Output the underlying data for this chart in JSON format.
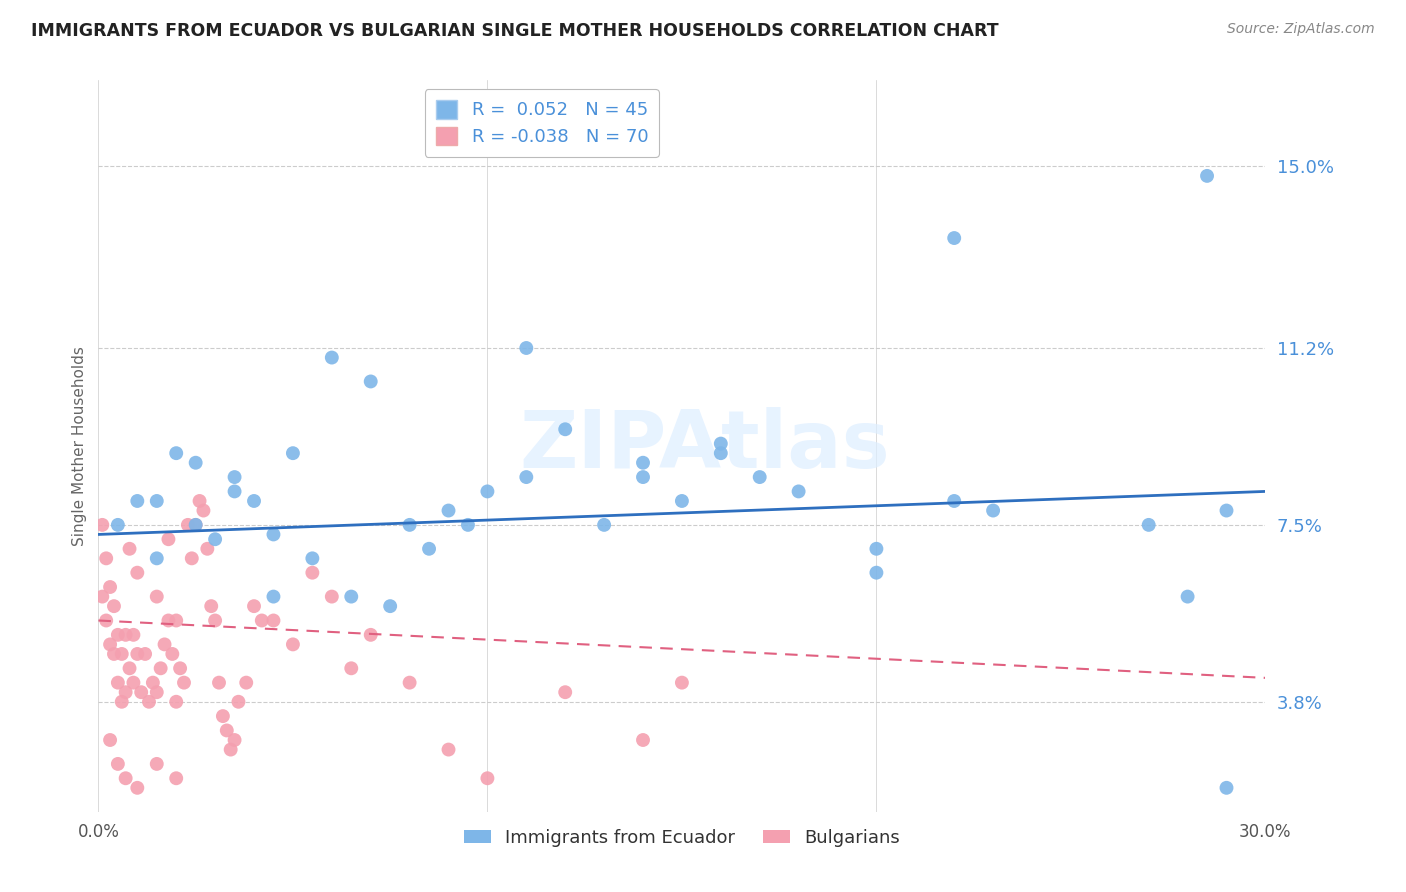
{
  "title": "IMMIGRANTS FROM ECUADOR VS BULGARIAN SINGLE MOTHER HOUSEHOLDS CORRELATION CHART",
  "source": "Source: ZipAtlas.com",
  "ylabel": "Single Mother Households",
  "legend_label1": "Immigrants from Ecuador",
  "legend_label2": "Bulgarians",
  "r1": 0.052,
  "n1": 45,
  "r2": -0.038,
  "n2": 70,
  "xlim": [
    0.0,
    0.3
  ],
  "ylim": [
    0.015,
    0.168
  ],
  "yticks": [
    0.038,
    0.075,
    0.112,
    0.15
  ],
  "ytick_labels": [
    "3.8%",
    "7.5%",
    "11.2%",
    "15.0%"
  ],
  "xticks": [
    0.0,
    0.05,
    0.1,
    0.15,
    0.2,
    0.25,
    0.3
  ],
  "xtick_labels": [
    "0.0%",
    "",
    "",
    "",
    "",
    "",
    "30.0%"
  ],
  "color1": "#7EB6E8",
  "color2": "#F4A0B0",
  "line_color1": "#2E6FBF",
  "line_color2": "#E06080",
  "background_color": "#FFFFFF",
  "blue_scatter_x": [
    0.005,
    0.01,
    0.015,
    0.02,
    0.025,
    0.03,
    0.035,
    0.04,
    0.045,
    0.05,
    0.06,
    0.07,
    0.08,
    0.09,
    0.1,
    0.11,
    0.12,
    0.13,
    0.14,
    0.15,
    0.16,
    0.17,
    0.18,
    0.2,
    0.22,
    0.23,
    0.27,
    0.285,
    0.29,
    0.015,
    0.025,
    0.035,
    0.045,
    0.055,
    0.065,
    0.075,
    0.085,
    0.095,
    0.11,
    0.14,
    0.16,
    0.2,
    0.22,
    0.28,
    0.29
  ],
  "blue_scatter_y": [
    0.075,
    0.08,
    0.068,
    0.09,
    0.075,
    0.072,
    0.085,
    0.08,
    0.073,
    0.09,
    0.11,
    0.105,
    0.075,
    0.078,
    0.082,
    0.112,
    0.095,
    0.075,
    0.085,
    0.08,
    0.09,
    0.085,
    0.082,
    0.07,
    0.135,
    0.078,
    0.075,
    0.148,
    0.02,
    0.08,
    0.088,
    0.082,
    0.06,
    0.068,
    0.06,
    0.058,
    0.07,
    0.075,
    0.085,
    0.088,
    0.092,
    0.065,
    0.08,
    0.06,
    0.078
  ],
  "pink_scatter_x": [
    0.001,
    0.001,
    0.002,
    0.002,
    0.003,
    0.003,
    0.004,
    0.004,
    0.005,
    0.005,
    0.006,
    0.006,
    0.007,
    0.007,
    0.008,
    0.008,
    0.009,
    0.009,
    0.01,
    0.01,
    0.011,
    0.012,
    0.013,
    0.014,
    0.015,
    0.015,
    0.016,
    0.017,
    0.018,
    0.018,
    0.019,
    0.02,
    0.02,
    0.021,
    0.022,
    0.023,
    0.024,
    0.025,
    0.026,
    0.027,
    0.028,
    0.029,
    0.03,
    0.031,
    0.032,
    0.033,
    0.034,
    0.035,
    0.036,
    0.038,
    0.04,
    0.042,
    0.045,
    0.05,
    0.055,
    0.06,
    0.065,
    0.07,
    0.08,
    0.09,
    0.1,
    0.12,
    0.14,
    0.15,
    0.003,
    0.005,
    0.007,
    0.01,
    0.015,
    0.02
  ],
  "pink_scatter_y": [
    0.06,
    0.075,
    0.055,
    0.068,
    0.05,
    0.062,
    0.048,
    0.058,
    0.042,
    0.052,
    0.038,
    0.048,
    0.04,
    0.052,
    0.045,
    0.07,
    0.042,
    0.052,
    0.048,
    0.065,
    0.04,
    0.048,
    0.038,
    0.042,
    0.04,
    0.06,
    0.045,
    0.05,
    0.055,
    0.072,
    0.048,
    0.038,
    0.055,
    0.045,
    0.042,
    0.075,
    0.068,
    0.075,
    0.08,
    0.078,
    0.07,
    0.058,
    0.055,
    0.042,
    0.035,
    0.032,
    0.028,
    0.03,
    0.038,
    0.042,
    0.058,
    0.055,
    0.055,
    0.05,
    0.065,
    0.06,
    0.045,
    0.052,
    0.042,
    0.028,
    0.022,
    0.04,
    0.03,
    0.042,
    0.03,
    0.025,
    0.022,
    0.02,
    0.025,
    0.022
  ],
  "blue_trend_x": [
    0.0,
    0.3
  ],
  "blue_trend_y": [
    0.073,
    0.082
  ],
  "pink_trend_x": [
    0.0,
    0.3
  ],
  "pink_trend_y": [
    0.055,
    0.043
  ]
}
